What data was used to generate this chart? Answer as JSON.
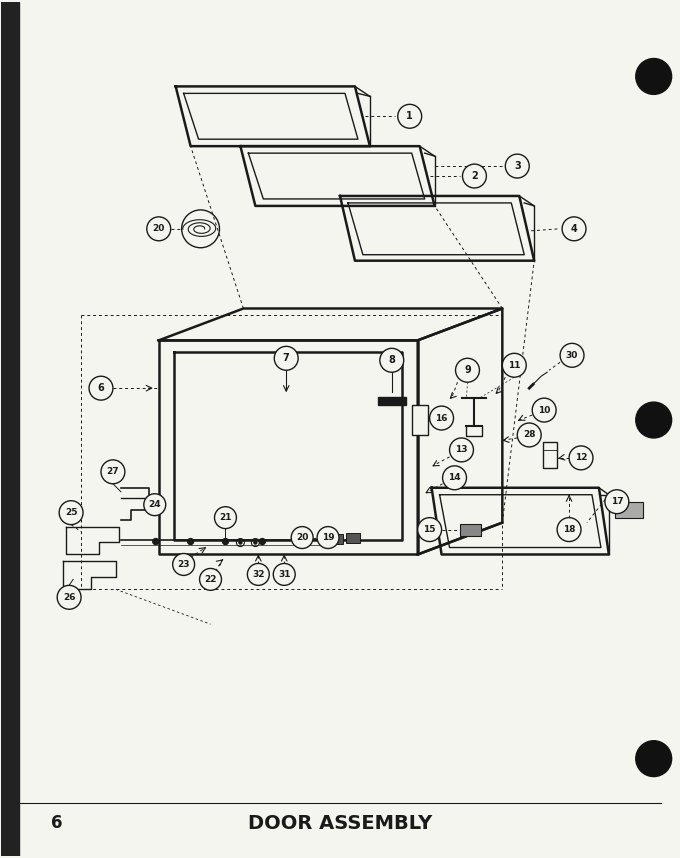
{
  "title": "DOOR ASSEMBLY",
  "page_number": "6",
  "background_color": "#f5f5f0",
  "line_color": "#1a1a1a",
  "fig_width": 6.8,
  "fig_height": 8.58,
  "dpi": 100,
  "border_color": "#111111",
  "text_color": "#111111"
}
